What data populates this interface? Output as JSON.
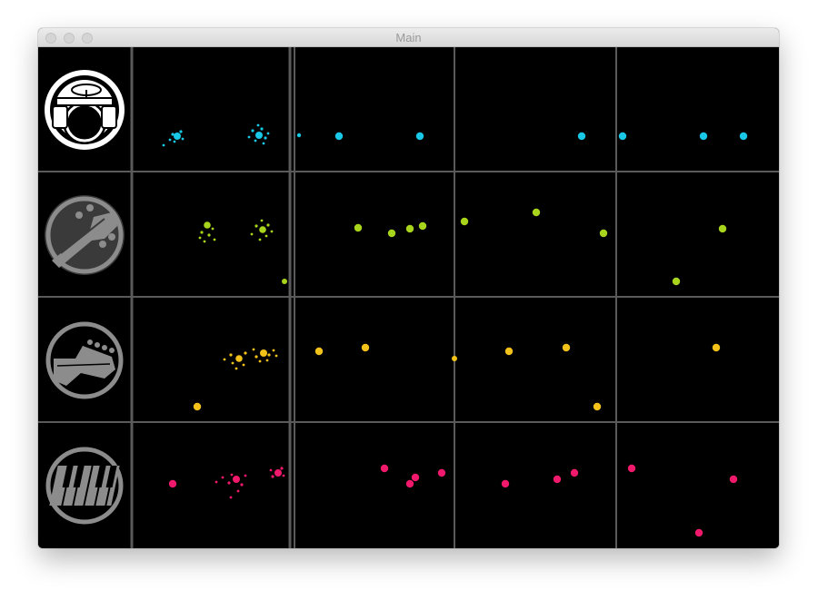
{
  "window": {
    "title": "Main"
  },
  "colors": {
    "drums": "#19c8e6",
    "bass": "#a8d51c",
    "guitar": "#f2c21a",
    "keys": "#f0196c",
    "grid": "#5a5a5a",
    "icon_drums": "#ffffff",
    "icon_other": "#8c8c8c"
  },
  "tracks": [
    {
      "name": "drums",
      "icon": "drum-kit-icon",
      "color_key": "drums"
    },
    {
      "name": "bass",
      "icon": "bass-guitar-headstock-icon",
      "color_key": "bass"
    },
    {
      "name": "guitar",
      "icon": "electric-guitar-headstock-icon",
      "color_key": "guitar"
    },
    {
      "name": "keys",
      "icon": "piano-keys-icon",
      "color_key": "keys"
    }
  ]
}
